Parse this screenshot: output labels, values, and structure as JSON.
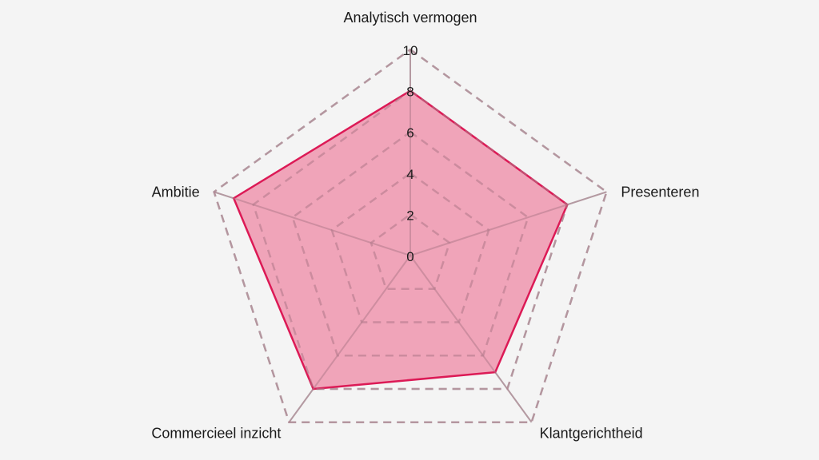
{
  "chart_data": {
    "type": "radar",
    "axes": [
      "Analytisch vermogen",
      "Presenteren",
      "Klantgerichtheid",
      "Commercieel inzicht",
      "Ambitie"
    ],
    "series": [
      {
        "values": [
          8,
          8,
          7,
          8,
          9
        ]
      }
    ],
    "range": [
      0,
      10
    ],
    "ticks": [
      "0",
      "2",
      "4",
      "6",
      "8",
      "10"
    ],
    "grid": true,
    "colors": {
      "fill": "#ef9fb5",
      "stroke": "#dc1a56",
      "grid": "#b9b9b9",
      "spoke": "#b9b9b9",
      "background": "#f4f4f4"
    }
  }
}
